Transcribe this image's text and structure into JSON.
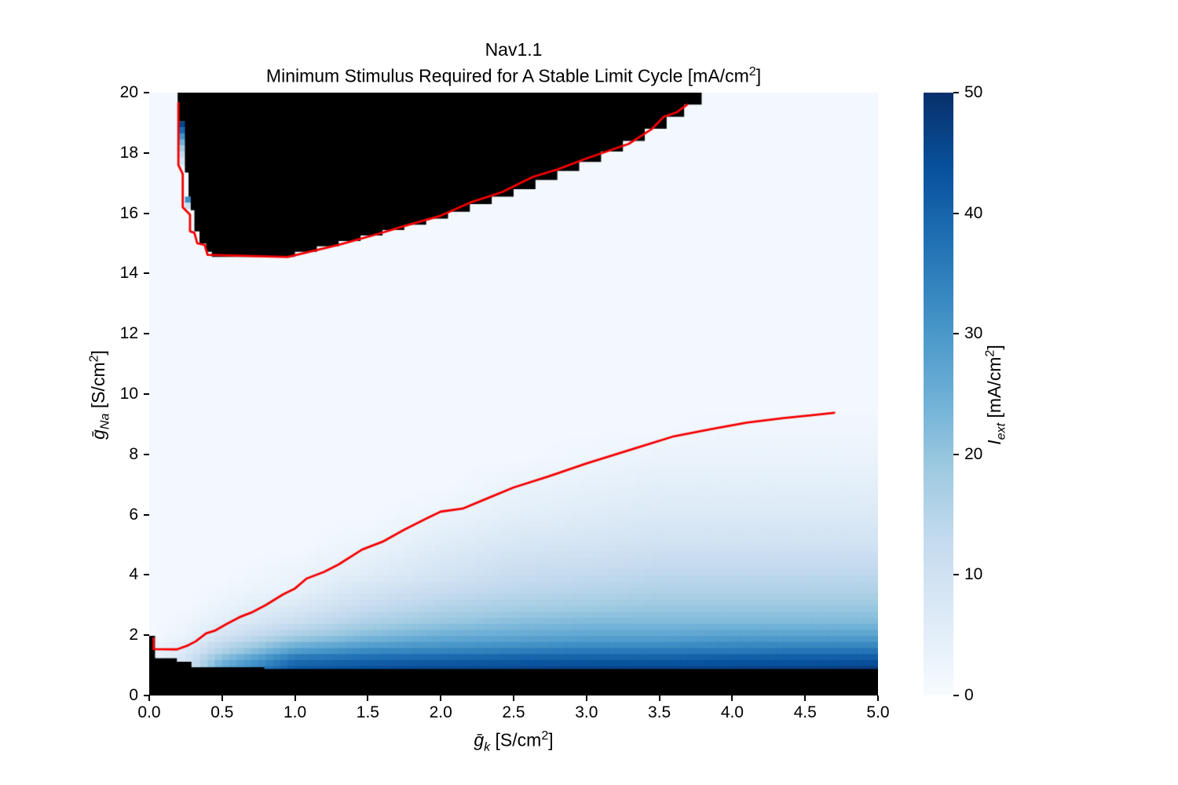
{
  "figure": {
    "title_line1": "Nav1.1",
    "title_line2": {
      "text": "Minimum Stimulus Required for A Stable Limit Cycle [mA/cm",
      "sup": "2",
      "close": "]"
    }
  },
  "x_axis": {
    "label": {
      "base": "ḡ",
      "sub": "k",
      "unit": " [S/cm",
      "sup": "2",
      "close": "]"
    },
    "ticks": [
      "0.0",
      "0.5",
      "1.0",
      "1.5",
      "2.0",
      "2.5",
      "3.0",
      "3.5",
      "4.0",
      "4.5",
      "5.0"
    ],
    "range": [
      0,
      5
    ]
  },
  "y_axis": {
    "label": {
      "base": "ḡ",
      "sub": "Na",
      "unit": " [S/cm",
      "sup": "2",
      "close": "]"
    },
    "ticks": [
      "0",
      "2",
      "4",
      "6",
      "8",
      "10",
      "12",
      "14",
      "16",
      "18",
      "20"
    ],
    "range": [
      0,
      20
    ]
  },
  "colorbar": {
    "label": {
      "base": "I",
      "sub": "ext",
      "unit": " [mA/cm",
      "sup": "2",
      "close": "]"
    },
    "ticks": [
      "0",
      "10",
      "20",
      "30",
      "40",
      "50"
    ],
    "range": [
      0,
      50
    ]
  },
  "chart_data": {
    "type": "heatmap",
    "title": "Nav1.1 — Minimum Stimulus Required for A Stable Limit Cycle [mA/cm2]",
    "xlabel": "g_k [S/cm2]",
    "ylabel": "g_Na [S/cm2]",
    "value_label": "I_ext [mA/cm2]",
    "x_range": [
      0,
      5
    ],
    "y_range": [
      0,
      20
    ],
    "value_range": [
      0,
      50
    ],
    "grid": false,
    "colormap": "Blues",
    "colormap_stops": [
      [
        0.0,
        "#f7fbff"
      ],
      [
        0.125,
        "#deebf7"
      ],
      [
        0.25,
        "#c6dbef"
      ],
      [
        0.375,
        "#9ecae1"
      ],
      [
        0.5,
        "#6baed6"
      ],
      [
        0.625,
        "#4292c6"
      ],
      [
        0.75,
        "#2171b5"
      ],
      [
        0.875,
        "#08519c"
      ],
      [
        1.0,
        "#08306b"
      ]
    ],
    "mask_color": "#000000",
    "contour_color": "#f40000",
    "cell_size": {
      "x": 0.05,
      "y": 0.2
    },
    "field": {
      "xs": [
        0,
        0.25,
        0.5,
        1,
        1.5,
        2,
        2.5,
        3,
        3.5,
        4,
        4.5,
        5
      ],
      "ys": [
        0.85,
        1.0,
        1.25,
        1.5,
        1.75,
        2.0,
        2.5,
        3.0,
        3.5,
        4.0,
        5.0,
        6.0,
        7.0,
        8.0,
        9.0,
        9.7,
        11,
        20
      ],
      "values": [
        [
          2,
          8,
          28,
          43,
          45,
          46,
          46,
          47,
          47,
          47,
          48,
          48
        ],
        [
          2,
          8,
          26,
          41,
          43,
          44,
          44,
          45,
          45,
          45,
          45,
          46
        ],
        [
          2,
          9,
          22,
          37,
          39,
          40,
          41,
          41,
          41,
          42,
          42,
          42
        ],
        [
          3,
          7,
          16,
          29,
          33,
          34,
          35,
          36,
          36,
          36,
          37,
          37
        ],
        [
          2,
          5,
          13,
          23,
          27,
          29,
          30,
          31,
          31,
          32,
          32,
          32
        ],
        [
          1,
          3,
          9,
          17,
          22,
          25,
          26,
          27,
          27,
          28,
          28,
          28
        ],
        [
          1,
          2,
          5,
          11,
          16,
          19,
          21,
          22,
          22,
          22,
          22,
          22
        ],
        [
          1,
          1,
          3,
          7,
          12,
          15,
          17,
          18,
          19,
          19,
          19,
          19
        ],
        [
          1,
          1,
          2,
          4,
          9,
          12,
          14,
          15,
          16,
          16,
          16,
          16
        ],
        [
          1,
          1,
          1,
          3,
          6,
          9,
          12,
          13,
          14,
          14,
          14,
          14
        ],
        [
          1,
          1,
          1,
          1,
          3,
          6,
          8,
          9,
          10,
          10,
          10,
          10
        ],
        [
          1,
          1,
          1,
          1,
          1,
          3,
          5,
          6,
          7,
          7,
          7,
          7
        ],
        [
          1,
          1,
          1,
          1,
          1,
          1,
          3,
          4,
          5,
          5,
          5,
          5
        ],
        [
          1,
          1,
          1,
          1,
          1,
          1,
          1,
          2,
          3,
          3,
          3,
          3
        ],
        [
          1,
          1,
          1,
          1,
          1,
          1,
          1,
          1,
          1,
          2,
          2,
          2
        ],
        [
          1,
          1,
          1,
          1,
          1,
          1,
          1,
          1,
          1,
          1,
          1,
          1
        ],
        [
          1,
          1,
          1,
          1,
          1,
          1,
          1,
          1,
          1,
          1,
          1,
          1
        ],
        [
          1,
          1,
          1,
          1,
          1,
          1,
          1,
          1,
          1,
          1,
          1,
          1
        ]
      ]
    },
    "mask_polygons": [
      {
        "name": "bottom-no-limit-cycle",
        "points": [
          [
            0,
            0
          ],
          [
            0,
            1.98
          ],
          [
            0.04,
            1.98
          ],
          [
            0.04,
            1.24
          ],
          [
            0.19,
            1.24
          ],
          [
            0.19,
            1.12
          ],
          [
            0.29,
            1.12
          ],
          [
            0.29,
            0.94
          ],
          [
            0.79,
            0.94
          ],
          [
            0.79,
            0.88
          ],
          [
            5,
            0.88
          ],
          [
            5,
            0
          ]
        ]
      },
      {
        "name": "top-no-limit-cycle",
        "points": [
          [
            0.195,
            20
          ],
          [
            0.195,
            19.05
          ],
          [
            0.245,
            19.05
          ],
          [
            0.245,
            17.35
          ],
          [
            0.27,
            17.35
          ],
          [
            0.27,
            16.55
          ],
          [
            0.285,
            16.55
          ],
          [
            0.285,
            16.1
          ],
          [
            0.31,
            16.1
          ],
          [
            0.31,
            15.4
          ],
          [
            0.345,
            15.4
          ],
          [
            0.345,
            15.0
          ],
          [
            0.39,
            15.0
          ],
          [
            0.39,
            14.72
          ],
          [
            0.43,
            14.72
          ],
          [
            0.43,
            14.55
          ],
          [
            1.0,
            14.55
          ],
          [
            1.0,
            14.72
          ],
          [
            1.15,
            14.72
          ],
          [
            1.15,
            14.9
          ],
          [
            1.3,
            14.9
          ],
          [
            1.3,
            15.08
          ],
          [
            1.45,
            15.08
          ],
          [
            1.45,
            15.26
          ],
          [
            1.6,
            15.26
          ],
          [
            1.6,
            15.44
          ],
          [
            1.75,
            15.44
          ],
          [
            1.75,
            15.62
          ],
          [
            1.9,
            15.62
          ],
          [
            1.9,
            15.82
          ],
          [
            2.05,
            15.82
          ],
          [
            2.05,
            16.05
          ],
          [
            2.2,
            16.05
          ],
          [
            2.2,
            16.3
          ],
          [
            2.35,
            16.3
          ],
          [
            2.35,
            16.55
          ],
          [
            2.5,
            16.55
          ],
          [
            2.5,
            16.8
          ],
          [
            2.65,
            16.8
          ],
          [
            2.65,
            17.1
          ],
          [
            2.8,
            17.1
          ],
          [
            2.8,
            17.4
          ],
          [
            2.95,
            17.4
          ],
          [
            2.95,
            17.7
          ],
          [
            3.1,
            17.7
          ],
          [
            3.1,
            18.05
          ],
          [
            3.25,
            18.05
          ],
          [
            3.25,
            18.4
          ],
          [
            3.4,
            18.4
          ],
          [
            3.4,
            18.8
          ],
          [
            3.55,
            18.8
          ],
          [
            3.55,
            19.2
          ],
          [
            3.67,
            19.2
          ],
          [
            3.67,
            19.6
          ],
          [
            3.79,
            19.6
          ],
          [
            3.79,
            20
          ]
        ]
      }
    ],
    "cells": [
      {
        "x": 0.195,
        "y": 18.85,
        "w": 0.05,
        "h": 0.2,
        "value": 46
      },
      {
        "x": 0.195,
        "y": 18.65,
        "w": 0.05,
        "h": 0.2,
        "value": 39
      },
      {
        "x": 0.195,
        "y": 18.45,
        "w": 0.05,
        "h": 0.2,
        "value": 31
      },
      {
        "x": 0.195,
        "y": 18.25,
        "w": 0.05,
        "h": 0.2,
        "value": 24
      },
      {
        "x": 0.195,
        "y": 18.05,
        "w": 0.05,
        "h": 0.2,
        "value": 18
      },
      {
        "x": 0.195,
        "y": 17.85,
        "w": 0.05,
        "h": 0.2,
        "value": 13
      },
      {
        "x": 0.195,
        "y": 17.6,
        "w": 0.05,
        "h": 0.25,
        "value": 8
      },
      {
        "x": 0.245,
        "y": 16.35,
        "w": 0.05,
        "h": 0.2,
        "value": 32
      },
      {
        "x": 0.245,
        "y": 16.15,
        "w": 0.05,
        "h": 0.2,
        "value": 11
      }
    ],
    "contours": [
      {
        "name": "upper-boundary",
        "points": [
          [
            0.2,
            19.66
          ],
          [
            0.2,
            17.6
          ],
          [
            0.23,
            17.3
          ],
          [
            0.23,
            16.2
          ],
          [
            0.28,
            15.95
          ],
          [
            0.28,
            15.4
          ],
          [
            0.31,
            15.35
          ],
          [
            0.33,
            15.0
          ],
          [
            0.38,
            14.95
          ],
          [
            0.4,
            14.62
          ],
          [
            0.95,
            14.55
          ],
          [
            1.3,
            14.95
          ],
          [
            1.56,
            15.3
          ],
          [
            1.77,
            15.6
          ],
          [
            1.99,
            15.9
          ],
          [
            2.2,
            16.35
          ],
          [
            2.42,
            16.7
          ],
          [
            2.63,
            17.2
          ],
          [
            2.8,
            17.45
          ],
          [
            2.99,
            17.8
          ],
          [
            3.29,
            18.3
          ],
          [
            3.45,
            18.8
          ],
          [
            3.53,
            19.2
          ],
          [
            3.62,
            19.35
          ],
          [
            3.69,
            19.6
          ]
        ]
      },
      {
        "name": "lower-boundary",
        "points": [
          [
            0.03,
            1.9
          ],
          [
            0.03,
            1.54
          ],
          [
            0.19,
            1.53
          ],
          [
            0.26,
            1.65
          ],
          [
            0.32,
            1.8
          ],
          [
            0.39,
            2.06
          ],
          [
            0.45,
            2.15
          ],
          [
            0.53,
            2.37
          ],
          [
            0.62,
            2.6
          ],
          [
            0.7,
            2.75
          ],
          [
            0.8,
            3.0
          ],
          [
            0.92,
            3.36
          ],
          [
            1.0,
            3.55
          ],
          [
            1.08,
            3.88
          ],
          [
            1.2,
            4.1
          ],
          [
            1.3,
            4.35
          ],
          [
            1.46,
            4.84
          ],
          [
            1.6,
            5.1
          ],
          [
            1.75,
            5.5
          ],
          [
            1.91,
            5.89
          ],
          [
            2.0,
            6.1
          ],
          [
            2.15,
            6.2
          ],
          [
            2.3,
            6.5
          ],
          [
            2.5,
            6.9
          ],
          [
            2.74,
            7.27
          ],
          [
            3.0,
            7.7
          ],
          [
            3.32,
            8.18
          ],
          [
            3.6,
            8.6
          ],
          [
            3.87,
            8.85
          ],
          [
            4.1,
            9.05
          ],
          [
            4.35,
            9.2
          ],
          [
            4.55,
            9.3
          ],
          [
            4.7,
            9.38
          ]
        ]
      }
    ]
  }
}
